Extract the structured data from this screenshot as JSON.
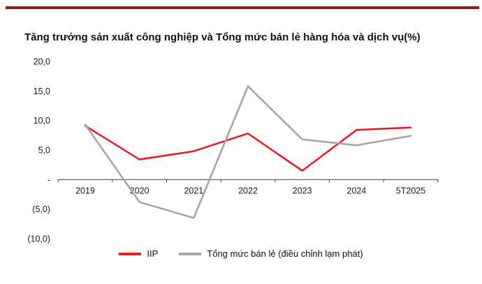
{
  "page": {
    "top_bar_color": "#8a1c1c",
    "background_color": "#ffffff"
  },
  "title": "Tăng trưởng sản xuất công nghiệp và Tổng mức bán lẻ hàng hóa và dịch vụ(%)",
  "chart_data": {
    "type": "line",
    "title": "Tăng trưởng sản xuất công nghiệp và Tổng mức bán lẻ hàng hóa và dịch vụ(%)",
    "categories": [
      "2019",
      "2020",
      "2021",
      "2022",
      "2023",
      "2024",
      "5T2025"
    ],
    "series": [
      {
        "name": "IIP",
        "color": "#e61e28",
        "values": [
          9.1,
          3.4,
          4.8,
          7.8,
          1.5,
          8.4,
          8.8
        ]
      },
      {
        "name": "Tổng mức bán lẻ (điều chỉnh lạm phát)",
        "color": "#a6a6a6",
        "values": [
          9.3,
          -3.8,
          -6.5,
          15.8,
          6.8,
          5.8,
          7.4
        ]
      }
    ],
    "xlabel": "",
    "ylabel": "",
    "ylim": [
      -10,
      20
    ],
    "ytick_step": 5,
    "ytick_labels": [
      "20,0",
      "15,0",
      "10,0",
      "5,0",
      " - ",
      "(5,0)",
      "(10,0)"
    ],
    "grid": false,
    "legend_position": "bottom",
    "axis_color": "#404040",
    "label_color": "#1a1a1a"
  }
}
